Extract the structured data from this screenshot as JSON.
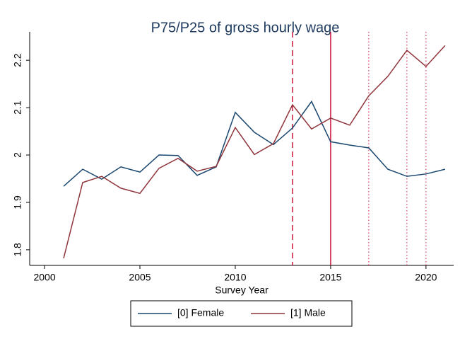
{
  "chart_data": {
    "type": "line",
    "title": "P75/P25 of gross hourly wage",
    "xlabel": "Survey Year",
    "x": [
      2001,
      2002,
      2003,
      2004,
      2005,
      2006,
      2007,
      2008,
      2009,
      2010,
      2011,
      2012,
      2013,
      2014,
      2015,
      2016,
      2017,
      2018,
      2019,
      2020,
      2021
    ],
    "series": [
      {
        "name": "[0] Female",
        "color": "#1a476f",
        "values": [
          1.934,
          1.97,
          1.949,
          1.975,
          1.964,
          2.0,
          1.999,
          1.957,
          1.975,
          2.09,
          2.048,
          2.022,
          2.057,
          2.113,
          2.028,
          2.021,
          2.015,
          1.97,
          1.955,
          1.96,
          1.97
        ]
      },
      {
        "name": "[1] Male",
        "color": "#90353b",
        "values": [
          1.782,
          1.942,
          1.955,
          1.93,
          1.919,
          1.972,
          1.993,
          1.966,
          1.976,
          2.058,
          2.001,
          2.024,
          2.106,
          2.055,
          2.078,
          2.063,
          2.125,
          2.166,
          2.221,
          2.187,
          2.231
        ]
      }
    ],
    "vlines": [
      {
        "x": 2013,
        "style": "dashed"
      },
      {
        "x": 2015,
        "style": "solid"
      },
      {
        "x": 2017,
        "style": "dotted"
      },
      {
        "x": 2019,
        "style": "dotted"
      },
      {
        "x": 2020,
        "style": "dotted"
      }
    ],
    "vline_color": "#d0143c",
    "xlim": [
      1999.22,
      2021.45
    ],
    "xticks": [
      2000,
      2005,
      2010,
      2015,
      2020
    ],
    "ylim": [
      1.767,
      2.26
    ],
    "yticks": [
      1.8,
      1.9,
      2,
      2.1,
      2.2
    ],
    "grid": false,
    "legend": "bottom"
  }
}
